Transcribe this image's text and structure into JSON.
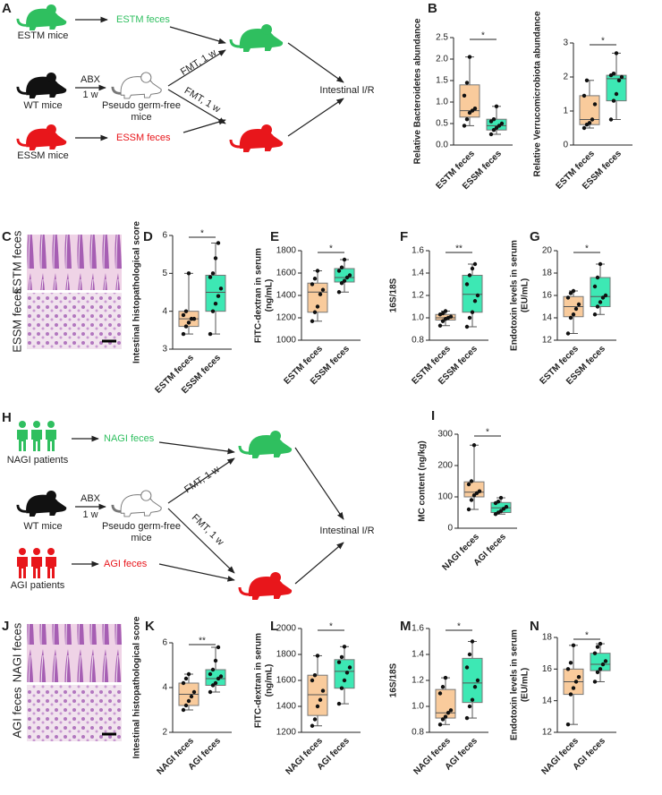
{
  "diagram_a": {
    "panel": "A",
    "estm_mice": "ESTM mice",
    "estm_feces": "ESTM feces",
    "abx": "ABX",
    "week": "1 w",
    "wt_mice": "WT mice",
    "pseudo_1": "Pseudo germ-free",
    "pseudo_2": "mice",
    "fmt_top": "FMT, 1 w",
    "fmt_bottom": "FMT, 1 w",
    "outcome": "Intestinal I/R",
    "essm_mice": "ESSM mice",
    "essm_feces": "ESSM feces"
  },
  "images_c": {
    "panel": "C",
    "top": "ESTM feces",
    "bottom": "ESSM feces"
  },
  "diagram_h": {
    "panel": "H",
    "nagi_patients": "NAGI patients",
    "nagi_feces": "NAGI feces",
    "abx": "ABX",
    "week": "1 w",
    "wt_mice": "WT mice",
    "pseudo_1": "Pseudo germ-free",
    "pseudo_2": "mice",
    "fmt_top": "FMT, 1 w",
    "fmt_bottom": "FMT, 1 w",
    "outcome": "Intestinal I/R",
    "agi_patients": "AGI patients",
    "agi_feces": "AGI feces"
  },
  "images_j": {
    "panel": "J",
    "top": "NAGI feces",
    "bottom": "AGI feces"
  },
  "chart_data": [
    {
      "type": "box",
      "panel": "B",
      "ylabel": [
        "Relative Bacteroidetes abundance"
      ],
      "categories": [
        "ESTM feces",
        "ESSM feces"
      ],
      "colors": [
        "#f9cb9c",
        "#3de8b4"
      ],
      "ylim": [
        0,
        2.5
      ],
      "yticks": [
        {
          "value": 0,
          "label": "0.0"
        },
        0.5,
        {
          "value": 1,
          "label": "1.0"
        },
        1.5,
        {
          "value": 2,
          "label": "2.0"
        },
        2.5
      ],
      "significance": "*",
      "groups": [
        {
          "min": 0.45,
          "q1": 0.65,
          "median": 0.8,
          "q3": 1.4,
          "max": 2.05,
          "points": [
            0.45,
            0.6,
            0.75,
            0.8,
            0.85,
            1.15,
            1.45,
            2.05
          ]
        },
        {
          "min": 0.25,
          "q1": 0.35,
          "median": 0.45,
          "q3": 0.6,
          "max": 0.9,
          "points": [
            0.25,
            0.35,
            0.4,
            0.45,
            0.5,
            0.55,
            0.6,
            0.9
          ]
        }
      ]
    },
    {
      "type": "box",
      "ylabel": [
        "Relative Verrucomicrobiota abundance"
      ],
      "categories": [
        "ESTM feces",
        "ESSM feces"
      ],
      "colors": [
        "#f9cb9c",
        "#3de8b4"
      ],
      "ylim": [
        0,
        3
      ],
      "yticks": [
        0,
        1,
        2,
        3
      ],
      "significance": "*",
      "groups": [
        {
          "min": 0.5,
          "q1": 0.6,
          "median": 0.75,
          "q3": 1.45,
          "max": 1.9,
          "points": [
            0.5,
            0.6,
            0.65,
            0.75,
            1.2,
            1.45,
            1.9
          ]
        },
        {
          "min": 0.75,
          "q1": 1.3,
          "median": 1.95,
          "q3": 2.05,
          "max": 2.7,
          "points": [
            0.75,
            1.3,
            1.5,
            1.9,
            2.0,
            2.05,
            2.1,
            2.7
          ]
        }
      ]
    },
    {
      "type": "box",
      "panel": "D",
      "ylabel": [
        "Intestinal histopathological score"
      ],
      "categories": [
        "ESTM feces",
        "ESSM feces"
      ],
      "colors": [
        "#f9cb9c",
        "#3de8b4"
      ],
      "ylim": [
        3,
        6
      ],
      "yticks": [
        3,
        4,
        5,
        6
      ],
      "significance": "*",
      "groups": [
        {
          "min": 3.4,
          "q1": 3.6,
          "median": 3.8,
          "q3": 4.0,
          "max": 5.0,
          "points": [
            3.4,
            3.6,
            3.7,
            3.8,
            3.8,
            3.9,
            4.0,
            5.0
          ]
        },
        {
          "min": 3.4,
          "q1": 4.0,
          "median": 4.5,
          "q3": 4.95,
          "max": 5.8,
          "points": [
            3.4,
            4.0,
            4.2,
            4.4,
            4.6,
            4.9,
            5.0,
            5.4,
            5.8
          ]
        }
      ]
    },
    {
      "type": "box",
      "panel": "E",
      "ylabel": [
        "FITC-dextran in serum",
        "(ng/mL)"
      ],
      "categories": [
        "ESTM feces",
        "ESSM feces"
      ],
      "colors": [
        "#f9cb9c",
        "#3de8b4"
      ],
      "ylim": [
        1000,
        1800
      ],
      "yticks": [
        1000,
        1200,
        1400,
        1600,
        1800
      ],
      "significance": "*",
      "groups": [
        {
          "min": 1170,
          "q1": 1250,
          "median": 1430,
          "q3": 1510,
          "max": 1620,
          "points": [
            1170,
            1250,
            1300,
            1410,
            1450,
            1500,
            1550,
            1620
          ]
        },
        {
          "min": 1430,
          "q1": 1520,
          "median": 1560,
          "q3": 1640,
          "max": 1720,
          "points": [
            1430,
            1510,
            1530,
            1560,
            1580,
            1620,
            1650,
            1720
          ]
        }
      ]
    },
    {
      "type": "box",
      "panel": "F",
      "ylabel": [
        "16S/18S"
      ],
      "categories": [
        "ESTM feces",
        "ESSM feces"
      ],
      "colors": [
        "#f9cb9c",
        "#3de8b4"
      ],
      "ylim": [
        0.8,
        1.6
      ],
      "yticks": [
        0.8,
        {
          "value": 1,
          "label": "1.0"
        },
        1.2,
        1.4,
        1.6
      ],
      "significance": "**",
      "groups": [
        {
          "min": 0.93,
          "q1": 0.98,
          "median": 1.0,
          "q3": 1.03,
          "max": 1.06,
          "points": [
            0.93,
            0.97,
            0.99,
            1.0,
            1.01,
            1.03,
            1.04,
            1.06
          ]
        },
        {
          "min": 0.92,
          "q1": 1.05,
          "median": 1.21,
          "q3": 1.38,
          "max": 1.48,
          "points": [
            0.92,
            1.0,
            1.05,
            1.15,
            1.2,
            1.3,
            1.38,
            1.44,
            1.48
          ]
        }
      ]
    },
    {
      "type": "box",
      "panel": "G",
      "ylabel": [
        "Endotoxin levels in serum",
        "(EU/mL)"
      ],
      "categories": [
        "ESTM feces",
        "ESSM feces"
      ],
      "colors": [
        "#f9cb9c",
        "#3de8b4"
      ],
      "ylim": [
        12,
        20
      ],
      "yticks": [
        12,
        14,
        16,
        18,
        20
      ],
      "significance": "*",
      "groups": [
        {
          "min": 12.6,
          "q1": 14.1,
          "median": 15.0,
          "q3": 15.9,
          "max": 16.4,
          "points": [
            12.6,
            14.0,
            14.3,
            14.8,
            15.2,
            15.8,
            16.2,
            16.4
          ]
        },
        {
          "min": 14.3,
          "q1": 15.0,
          "median": 15.9,
          "q3": 17.6,
          "max": 18.8,
          "points": [
            14.3,
            15.0,
            15.4,
            15.8,
            16.0,
            16.8,
            17.6,
            18.8
          ]
        }
      ]
    },
    {
      "type": "box",
      "panel": "I",
      "ylabel": [
        "MC content (ng/kg)"
      ],
      "categories": [
        "NAGI feces",
        "AGI feces"
      ],
      "colors": [
        "#f9cb9c",
        "#3de8b4"
      ],
      "ylim": [
        0,
        300
      ],
      "yticks": [
        0,
        100,
        200,
        300
      ],
      "significance": "*",
      "groups": [
        {
          "min": 60,
          "q1": 100,
          "median": 115,
          "q3": 148,
          "max": 265,
          "points": [
            60,
            90,
            105,
            112,
            118,
            140,
            150,
            265
          ]
        },
        {
          "min": 45,
          "q1": 50,
          "median": 65,
          "q3": 82,
          "max": 97,
          "points": [
            45,
            50,
            55,
            62,
            68,
            80,
            85,
            97
          ]
        }
      ]
    },
    {
      "type": "box",
      "panel": "K",
      "ylabel": [
        "Intestinal histopathological score"
      ],
      "categories": [
        "NAGI feces",
        "AGI feces"
      ],
      "colors": [
        "#f9cb9c",
        "#3de8b4"
      ],
      "ylim": [
        2,
        6
      ],
      "yticks": [
        2,
        4,
        6
      ],
      "significance": "**",
      "groups": [
        {
          "min": 3.0,
          "q1": 3.2,
          "median": 3.7,
          "q3": 4.2,
          "max": 4.6,
          "points": [
            3.0,
            3.2,
            3.4,
            3.6,
            3.8,
            4.2,
            4.4,
            4.6
          ]
        },
        {
          "min": 3.8,
          "q1": 4.1,
          "median": 4.4,
          "q3": 4.8,
          "max": 5.8,
          "points": [
            3.8,
            4.1,
            4.2,
            4.4,
            4.5,
            4.6,
            4.8,
            5.2,
            5.8
          ]
        }
      ]
    },
    {
      "type": "box",
      "panel": "L",
      "ylabel": [
        "FITC-dextran in serum",
        "(ng/mL)"
      ],
      "categories": [
        "NAGI feces",
        "AGI feces"
      ],
      "colors": [
        "#f9cb9c",
        "#3de8b4"
      ],
      "ylim": [
        1200,
        2000
      ],
      "yticks": [
        1200,
        1400,
        1600,
        1800,
        2000
      ],
      "significance": "*",
      "groups": [
        {
          "min": 1250,
          "q1": 1330,
          "median": 1490,
          "q3": 1640,
          "max": 1790,
          "points": [
            1250,
            1300,
            1400,
            1450,
            1520,
            1600,
            1640,
            1790
          ]
        },
        {
          "min": 1420,
          "q1": 1540,
          "median": 1670,
          "q3": 1760,
          "max": 1860,
          "points": [
            1420,
            1540,
            1600,
            1660,
            1700,
            1740,
            1780,
            1860
          ]
        }
      ]
    },
    {
      "type": "box",
      "panel": "M",
      "ylabel": [
        "16S/18S"
      ],
      "categories": [
        "NAGI feces",
        "AGI feces"
      ],
      "colors": [
        "#f9cb9c",
        "#3de8b4"
      ],
      "ylim": [
        0.8,
        1.6
      ],
      "yticks": [
        0.8,
        {
          "value": 1,
          "label": "1.0"
        },
        1.2,
        1.4,
        1.6
      ],
      "significance": "*",
      "groups": [
        {
          "min": 0.86,
          "q1": 0.91,
          "median": 0.95,
          "q3": 1.13,
          "max": 1.22,
          "points": [
            0.86,
            0.9,
            0.92,
            0.95,
            0.97,
            1.1,
            1.15,
            1.22
          ]
        },
        {
          "min": 0.91,
          "q1": 1.03,
          "median": 1.18,
          "q3": 1.37,
          "max": 1.5,
          "points": [
            0.91,
            1.0,
            1.05,
            1.15,
            1.2,
            1.3,
            1.4,
            1.5
          ]
        }
      ]
    },
    {
      "type": "box",
      "panel": "N",
      "ylabel": [
        "Endotoxin levels in serum",
        "(EU/mL)"
      ],
      "categories": [
        "NAGI feces",
        "AGI feces"
      ],
      "colors": [
        "#f9cb9c",
        "#3de8b4"
      ],
      "ylim": [
        12,
        18
      ],
      "yticks": [
        12,
        14,
        16,
        18
      ],
      "significance": "*",
      "groups": [
        {
          "min": 12.5,
          "q1": 14.4,
          "median": 15.2,
          "q3": 16.0,
          "max": 17.5,
          "points": [
            12.5,
            14.4,
            14.8,
            15.2,
            15.5,
            16.0,
            16.4,
            17.5
          ]
        },
        {
          "min": 15.2,
          "q1": 15.9,
          "median": 16.3,
          "q3": 17.0,
          "max": 17.6,
          "points": [
            15.2,
            15.8,
            16.0,
            16.3,
            16.5,
            17.0,
            17.4,
            17.6
          ]
        }
      ]
    }
  ]
}
